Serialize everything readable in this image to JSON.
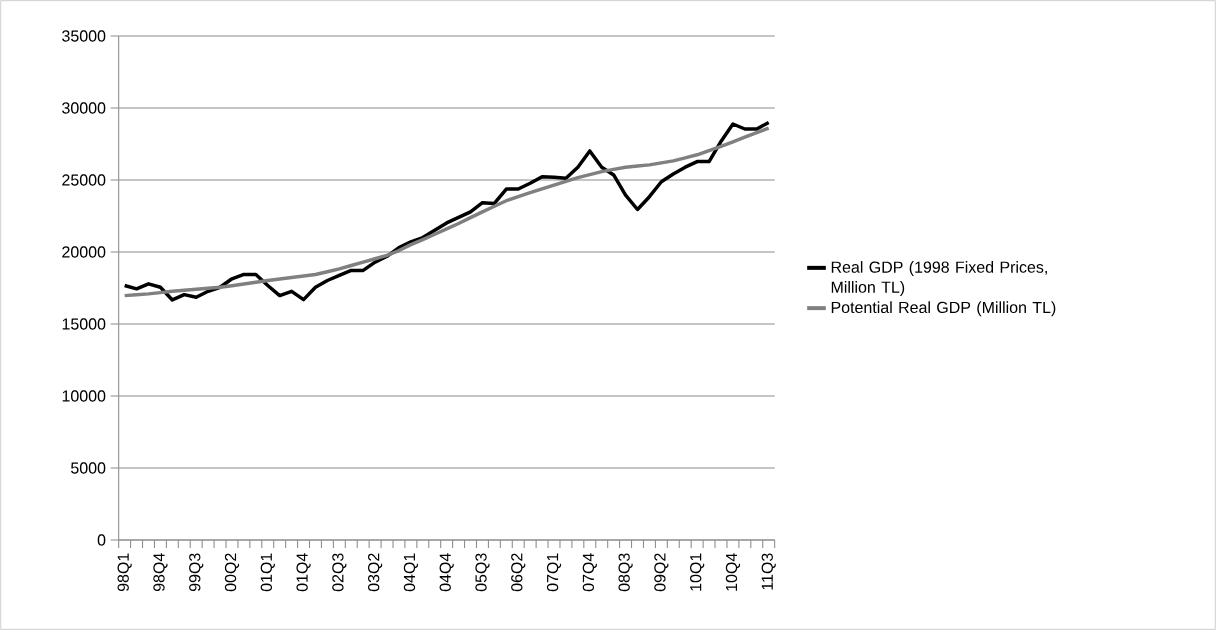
{
  "chart_data": {
    "type": "line",
    "categories": [
      "98Q1",
      null,
      null,
      "98Q4",
      null,
      null,
      "99Q3",
      null,
      null,
      "00Q2",
      null,
      null,
      "01Q1",
      null,
      null,
      "01Q4",
      null,
      null,
      "02Q3",
      null,
      null,
      "03Q2",
      null,
      null,
      "04Q1",
      null,
      null,
      "04Q4",
      null,
      null,
      "05Q3",
      null,
      null,
      "06Q2",
      null,
      null,
      "07Q1",
      null,
      null,
      "07Q4",
      null,
      null,
      "08Q3",
      null,
      null,
      "09Q2",
      null,
      null,
      "10Q1",
      null,
      null,
      "10Q4",
      null,
      null,
      "11Q3"
    ],
    "series": [
      {
        "name": "Real GDP (1998 Fixed Prices, Million TL)",
        "color": "#000000",
        "values": [
          17670,
          17440,
          17790,
          17550,
          16670,
          17040,
          16860,
          17270,
          17550,
          18140,
          18440,
          18440,
          17670,
          16970,
          17270,
          16690,
          17550,
          18020,
          18370,
          18720,
          18720,
          19300,
          19700,
          20300,
          20700,
          21000,
          21510,
          22020,
          22400,
          22790,
          23420,
          23370,
          24370,
          24370,
          24770,
          25230,
          25190,
          25120,
          25890,
          27020,
          25890,
          25350,
          23950,
          22950,
          23840,
          24880,
          25420,
          25890,
          26280,
          26280,
          27680,
          28890,
          28540,
          28540,
          29000
        ]
      },
      {
        "name": "Potential Real GDP (Million TL)",
        "color": "#808080",
        "values": [
          16970,
          17030,
          17090,
          17180,
          17270,
          17340,
          17410,
          17480,
          17550,
          17660,
          17780,
          17900,
          18020,
          18120,
          18230,
          18330,
          18440,
          18630,
          18830,
          19060,
          19300,
          19530,
          19770,
          20100,
          20510,
          20860,
          21230,
          21600,
          21980,
          22390,
          22790,
          23180,
          23560,
          23840,
          24120,
          24390,
          24650,
          24910,
          25160,
          25370,
          25580,
          25740,
          25890,
          25970,
          26050,
          26190,
          26330,
          26540,
          26750,
          27040,
          27330,
          27650,
          27980,
          28290,
          28600
        ]
      }
    ],
    "ylim": [
      0,
      35000
    ],
    "yticks": [
      0,
      5000,
      10000,
      15000,
      20000,
      25000,
      30000,
      35000
    ],
    "grid": "y",
    "legend": "right"
  }
}
